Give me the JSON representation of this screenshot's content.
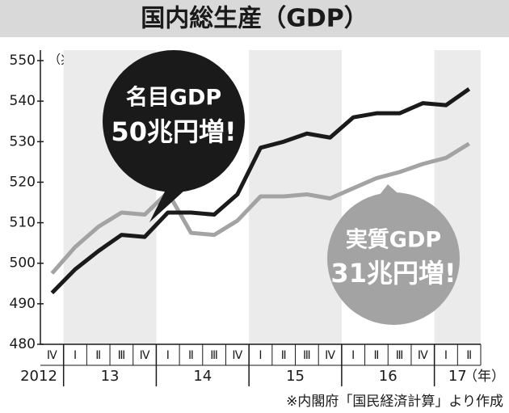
{
  "chart_data": {
    "type": "line",
    "title": "国内総生産（GDP）",
    "y_unit": "（兆円）",
    "categories": [
      "Ⅳ",
      "Ⅰ",
      "Ⅱ",
      "Ⅲ",
      "Ⅳ",
      "Ⅰ",
      "Ⅱ",
      "Ⅲ",
      "Ⅳ",
      "Ⅰ",
      "Ⅱ",
      "Ⅲ",
      "Ⅳ",
      "Ⅰ",
      "Ⅱ",
      "Ⅲ",
      "Ⅳ",
      "Ⅰ",
      "Ⅱ"
    ],
    "year_labels": [
      "2012",
      "13",
      "14",
      "15",
      "16",
      "17"
    ],
    "x_unit": "（年）",
    "series": [
      {
        "name": "名目GDP",
        "color": "#1a1a1a",
        "values": [
          492.7,
          498.5,
          503,
          507,
          506.5,
          512.5,
          512.5,
          512,
          517,
          528.5,
          530,
          532,
          531,
          536,
          537,
          537,
          539.5,
          539,
          543
        ],
        "callout": "50兆円増!"
      },
      {
        "name": "実質GDP",
        "color": "#a3a3a3",
        "values": [
          497.5,
          504,
          509,
          512.5,
          512,
          517.5,
          507.5,
          507,
          510.5,
          516.5,
          516.5,
          517,
          516,
          518.5,
          521,
          522.5,
          524.5,
          526,
          529.5
        ],
        "callout": "31兆円増!"
      }
    ],
    "ylim": [
      480,
      550
    ],
    "yticks": [
      480,
      490,
      500,
      510,
      520,
      530,
      540,
      550
    ],
    "source": "※内閣府「国民経済計算」より作成"
  }
}
